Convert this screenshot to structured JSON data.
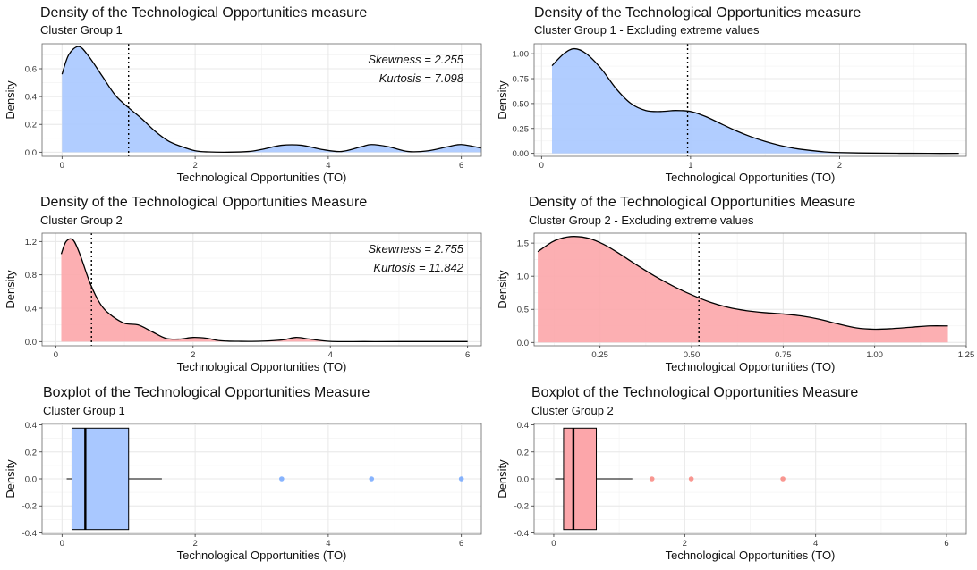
{
  "colors": {
    "blue": "#619CFF",
    "red": "#F8766D",
    "blue_fill": "#A9C8FF",
    "red_fill": "#FCA6AA"
  },
  "chart_data": [
    {
      "type": "area",
      "title": "Density of the Technological Opportunities measure",
      "subtitle": "Cluster Group 1",
      "xlabel": "Technological Opportunities (TO)",
      "ylabel": "Density",
      "color": "blue",
      "xlim": [
        -0.3,
        6.3
      ],
      "ylim": [
        -0.03,
        0.78
      ],
      "xticks": [
        0,
        2,
        4,
        6
      ],
      "yticks": [
        0.0,
        0.2,
        0.4,
        0.6
      ],
      "ytick_labels": [
        "0.0",
        "0.2",
        "0.4",
        "0.6"
      ],
      "vline": 1.0,
      "x": [
        0.0,
        0.1,
        0.25,
        0.4,
        0.6,
        0.8,
        1.0,
        1.2,
        1.4,
        1.6,
        1.8,
        2.0,
        2.2,
        2.5,
        2.8,
        3.0,
        3.3,
        3.6,
        3.9,
        4.2,
        4.5,
        4.65,
        4.9,
        5.2,
        5.5,
        5.8,
        6.0,
        6.3
      ],
      "y": [
        0.56,
        0.7,
        0.76,
        0.69,
        0.55,
        0.41,
        0.32,
        0.24,
        0.15,
        0.08,
        0.04,
        0.01,
        0.002,
        0.0,
        0.005,
        0.02,
        0.05,
        0.05,
        0.02,
        0.005,
        0.04,
        0.055,
        0.04,
        0.005,
        0.01,
        0.04,
        0.055,
        0.03
      ],
      "annotations": [
        "Skewness = 2.255",
        "Kurtosis = 7.098"
      ]
    },
    {
      "type": "area",
      "title": "Density of the Technological Opportunities measure",
      "subtitle": "Cluster Group 1 - Excluding extreme values",
      "xlabel": "Technological Opportunities (TO)",
      "ylabel": "Density",
      "color": "blue",
      "xlim": [
        -0.05,
        2.85
      ],
      "ylim": [
        -0.03,
        1.1
      ],
      "xticks": [
        0,
        1,
        2
      ],
      "yticks": [
        0.0,
        0.25,
        0.5,
        0.75,
        1.0
      ],
      "ytick_labels": [
        "0.00",
        "0.25",
        "0.50",
        "0.75",
        "1.00"
      ],
      "vline": 0.98,
      "x": [
        0.07,
        0.15,
        0.22,
        0.3,
        0.4,
        0.5,
        0.6,
        0.7,
        0.8,
        0.9,
        1.0,
        1.1,
        1.2,
        1.3,
        1.4,
        1.5,
        1.6,
        1.7,
        1.8,
        1.9,
        2.0,
        2.2,
        2.4,
        2.6,
        2.8
      ],
      "y": [
        0.88,
        1.0,
        1.05,
        1.0,
        0.85,
        0.65,
        0.5,
        0.43,
        0.42,
        0.43,
        0.42,
        0.37,
        0.3,
        0.23,
        0.17,
        0.12,
        0.08,
        0.05,
        0.03,
        0.015,
        0.008,
        0.003,
        0.001,
        0.0,
        0.0
      ]
    },
    {
      "type": "area",
      "title": "Density of the Technological Opportunities Measure",
      "subtitle": "Cluster Group 2",
      "xlabel": "Technological Opportunities (TO)",
      "ylabel": "Density",
      "color": "red",
      "xlim": [
        -0.2,
        6.2
      ],
      "ylim": [
        -0.05,
        1.3
      ],
      "xticks": [
        0,
        2,
        4,
        6
      ],
      "yticks": [
        0.0,
        0.4,
        0.8,
        1.2
      ],
      "ytick_labels": [
        "0.0",
        "0.4",
        "0.8",
        "1.2"
      ],
      "vline": 0.52,
      "x": [
        0.08,
        0.15,
        0.25,
        0.35,
        0.5,
        0.65,
        0.8,
        1.0,
        1.2,
        1.4,
        1.6,
        1.8,
        2.0,
        2.2,
        2.4,
        2.7,
        3.0,
        3.3,
        3.5,
        3.7,
        4.0,
        4.5,
        5.0,
        6.0
      ],
      "y": [
        1.05,
        1.2,
        1.22,
        1.05,
        0.7,
        0.45,
        0.32,
        0.22,
        0.2,
        0.12,
        0.04,
        0.03,
        0.05,
        0.04,
        0.01,
        0.003,
        0.005,
        0.02,
        0.05,
        0.03,
        0.002,
        0.0,
        0.0,
        0.0
      ],
      "annotations": [
        "Skewness = 2.755",
        "Kurtosis = 11.842"
      ]
    },
    {
      "type": "area",
      "title": "Density of the Technological Opportunities Measure",
      "subtitle": "Cluster Group 2 - Excluding extreme values",
      "xlabel": "Technological Opportunities (TO)",
      "ylabel": "Density",
      "color": "red",
      "xlim": [
        0.07,
        1.25
      ],
      "ylim": [
        -0.05,
        1.65
      ],
      "xticks": [
        0.25,
        0.5,
        0.75,
        1.0,
        1.25
      ],
      "yticks": [
        0.0,
        0.5,
        1.0,
        1.5
      ],
      "xtick_labels": [
        "0.25",
        "0.50",
        "0.75",
        "1.00",
        "1.25"
      ],
      "ytick_labels": [
        "0.0",
        "0.5",
        "1.0",
        "1.5"
      ],
      "vline": 0.52,
      "x": [
        0.08,
        0.12,
        0.15,
        0.18,
        0.22,
        0.26,
        0.3,
        0.35,
        0.4,
        0.45,
        0.5,
        0.55,
        0.6,
        0.65,
        0.7,
        0.75,
        0.8,
        0.85,
        0.9,
        0.95,
        1.0,
        1.05,
        1.1,
        1.15,
        1.2
      ],
      "y": [
        1.37,
        1.52,
        1.58,
        1.6,
        1.57,
        1.48,
        1.35,
        1.17,
        1.0,
        0.85,
        0.72,
        0.61,
        0.53,
        0.48,
        0.45,
        0.43,
        0.4,
        0.35,
        0.28,
        0.22,
        0.2,
        0.21,
        0.23,
        0.25,
        0.25
      ]
    },
    {
      "type": "boxplot",
      "title": "Boxplot of the Technological Opportunities Measure",
      "subtitle": "Cluster Group 1",
      "xlabel": "Technological Opportunities (TO)",
      "ylabel": "Density",
      "color": "blue",
      "xlim": [
        -0.3,
        6.3
      ],
      "ylim": [
        -0.41,
        0.41
      ],
      "xticks": [
        0,
        2,
        4,
        6
      ],
      "yticks": [
        -0.4,
        -0.2,
        0.0,
        0.2,
        0.4
      ],
      "ytick_labels": [
        "-0.4",
        "-0.2",
        "0.0",
        "0.2",
        "0.4"
      ],
      "box": {
        "whisker_low": 0.07,
        "q1": 0.15,
        "median": 0.35,
        "q3": 1.0,
        "whisker_high": 1.5,
        "ymin": -0.375,
        "ymax": 0.375
      },
      "outliers": [
        3.3,
        4.65,
        6.0
      ]
    },
    {
      "type": "boxplot",
      "title": "Boxplot of the Technological Opportunities Measure",
      "subtitle": "Cluster Group 2",
      "xlabel": "Technological Opportunities (TO)",
      "ylabel": "Density",
      "color": "red",
      "xlim": [
        -0.3,
        6.3
      ],
      "ylim": [
        -0.41,
        0.41
      ],
      "xticks": [
        0,
        2,
        4,
        6
      ],
      "yticks": [
        -0.4,
        -0.2,
        0.0,
        0.2,
        0.4
      ],
      "ytick_labels": [
        "-0.4",
        "-0.2",
        "0.0",
        "0.2",
        "0.4"
      ],
      "box": {
        "whisker_low": 0.02,
        "q1": 0.15,
        "median": 0.3,
        "q3": 0.65,
        "whisker_high": 1.2,
        "ymin": -0.375,
        "ymax": 0.375
      },
      "outliers": [
        1.5,
        2.1,
        3.5
      ]
    }
  ]
}
